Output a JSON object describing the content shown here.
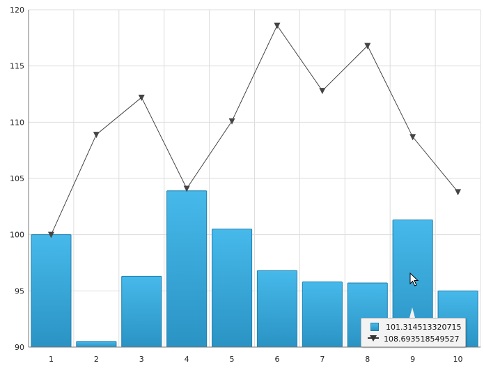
{
  "chart_data": {
    "type": "bar",
    "categories": [
      "1",
      "2",
      "3",
      "4",
      "5",
      "6",
      "7",
      "8",
      "9",
      "10"
    ],
    "series": [
      {
        "type": "bar",
        "values": [
          100.0,
          90.5,
          96.3,
          103.9,
          100.5,
          96.8,
          95.8,
          95.7,
          101.314513320715,
          95.0
        ]
      },
      {
        "type": "line",
        "marker": "triangle-down",
        "values": [
          100.0,
          108.9,
          112.2,
          104.1,
          110.1,
          118.6,
          112.8,
          116.8,
          108.693518549527,
          103.8
        ]
      }
    ],
    "ylim": [
      90,
      120
    ],
    "yticks": [
      "90",
      "95",
      "100",
      "105",
      "110",
      "115",
      "120"
    ],
    "grid": true,
    "tooltip": {
      "bar_value": "101.314513320715",
      "line_value": "108.693518549527"
    },
    "colors": {
      "bar_top": "#46b9ea",
      "bar_bottom": "#2a93c4",
      "bar_edge": "#1f7fae",
      "line": "#444444",
      "grid": "#dddddd"
    }
  }
}
